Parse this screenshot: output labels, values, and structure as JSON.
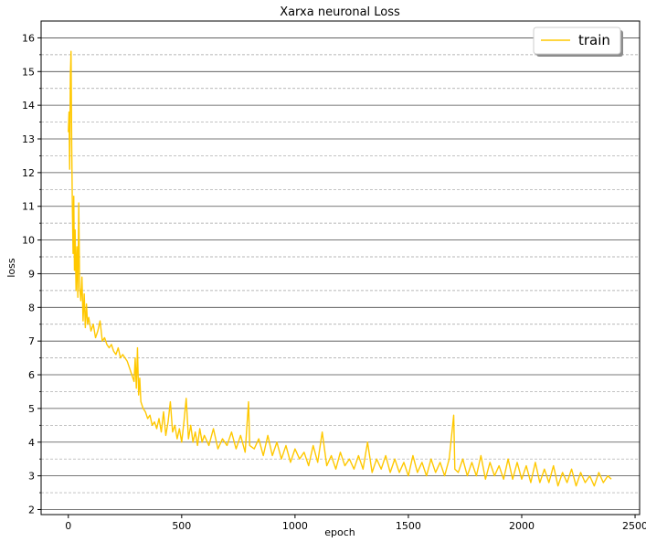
{
  "chart_data": {
    "type": "line",
    "title": "Xarxa neuronal Loss",
    "xlabel": "epoch",
    "ylabel": "loss",
    "xlim": [
      -120,
      2520
    ],
    "ylim": [
      1.85,
      16.5
    ],
    "xticks": [
      0,
      500,
      1000,
      1500,
      2000,
      2500
    ],
    "yticks": [
      2,
      3,
      4,
      5,
      6,
      7,
      8,
      9,
      10,
      11,
      12,
      13,
      14,
      15,
      16
    ],
    "grid": "major solid, minor dashed (y axis)",
    "legend": {
      "position": "top-right",
      "entries": [
        "train"
      ]
    },
    "series": [
      {
        "name": "train",
        "color": "#ffc800",
        "points": [
          [
            0,
            13.2
          ],
          [
            3,
            13.8
          ],
          [
            6,
            12.1
          ],
          [
            9,
            14.9
          ],
          [
            12,
            15.6
          ],
          [
            15,
            12.8
          ],
          [
            18,
            10.9
          ],
          [
            21,
            9.6
          ],
          [
            24,
            11.3
          ],
          [
            27,
            9.1
          ],
          [
            30,
            10.3
          ],
          [
            34,
            8.5
          ],
          [
            38,
            9.8
          ],
          [
            42,
            8.3
          ],
          [
            46,
            11.1
          ],
          [
            50,
            8.6
          ],
          [
            55,
            8.2
          ],
          [
            60,
            8.9
          ],
          [
            65,
            7.6
          ],
          [
            70,
            8.4
          ],
          [
            75,
            7.4
          ],
          [
            80,
            8.1
          ],
          [
            85,
            7.5
          ],
          [
            90,
            7.7
          ],
          [
            100,
            7.3
          ],
          [
            110,
            7.5
          ],
          [
            120,
            7.1
          ],
          [
            130,
            7.3
          ],
          [
            140,
            7.6
          ],
          [
            150,
            7.0
          ],
          [
            160,
            7.1
          ],
          [
            170,
            6.9
          ],
          [
            180,
            6.8
          ],
          [
            190,
            6.9
          ],
          [
            200,
            6.7
          ],
          [
            210,
            6.6
          ],
          [
            220,
            6.8
          ],
          [
            230,
            6.5
          ],
          [
            240,
            6.6
          ],
          [
            250,
            6.5
          ],
          [
            260,
            6.4
          ],
          [
            270,
            6.2
          ],
          [
            280,
            6.0
          ],
          [
            290,
            5.8
          ],
          [
            295,
            6.5
          ],
          [
            300,
            5.6
          ],
          [
            305,
            6.8
          ],
          [
            310,
            5.4
          ],
          [
            315,
            5.9
          ],
          [
            320,
            5.2
          ],
          [
            330,
            5.0
          ],
          [
            340,
            4.9
          ],
          [
            350,
            4.7
          ],
          [
            360,
            4.8
          ],
          [
            370,
            4.5
          ],
          [
            380,
            4.6
          ],
          [
            390,
            4.4
          ],
          [
            400,
            4.7
          ],
          [
            410,
            4.3
          ],
          [
            420,
            4.9
          ],
          [
            430,
            4.2
          ],
          [
            440,
            4.6
          ],
          [
            450,
            5.2
          ],
          [
            460,
            4.3
          ],
          [
            470,
            4.5
          ],
          [
            480,
            4.1
          ],
          [
            490,
            4.4
          ],
          [
            500,
            4.0
          ],
          [
            510,
            4.6
          ],
          [
            520,
            5.3
          ],
          [
            530,
            4.1
          ],
          [
            540,
            4.5
          ],
          [
            550,
            4.0
          ],
          [
            560,
            4.3
          ],
          [
            570,
            3.9
          ],
          [
            580,
            4.4
          ],
          [
            590,
            4.0
          ],
          [
            600,
            4.2
          ],
          [
            620,
            3.9
          ],
          [
            640,
            4.4
          ],
          [
            660,
            3.8
          ],
          [
            680,
            4.1
          ],
          [
            700,
            3.9
          ],
          [
            720,
            4.3
          ],
          [
            740,
            3.8
          ],
          [
            760,
            4.2
          ],
          [
            780,
            3.7
          ],
          [
            795,
            5.2
          ],
          [
            800,
            3.9
          ],
          [
            820,
            3.8
          ],
          [
            840,
            4.1
          ],
          [
            860,
            3.6
          ],
          [
            880,
            4.2
          ],
          [
            900,
            3.6
          ],
          [
            920,
            4.0
          ],
          [
            940,
            3.5
          ],
          [
            960,
            3.9
          ],
          [
            980,
            3.4
          ],
          [
            1000,
            3.8
          ],
          [
            1020,
            3.5
          ],
          [
            1040,
            3.7
          ],
          [
            1060,
            3.3
          ],
          [
            1080,
            3.9
          ],
          [
            1100,
            3.4
          ],
          [
            1120,
            4.3
          ],
          [
            1140,
            3.3
          ],
          [
            1160,
            3.6
          ],
          [
            1180,
            3.2
          ],
          [
            1200,
            3.7
          ],
          [
            1220,
            3.3
          ],
          [
            1240,
            3.5
          ],
          [
            1260,
            3.2
          ],
          [
            1280,
            3.6
          ],
          [
            1300,
            3.2
          ],
          [
            1320,
            4.0
          ],
          [
            1340,
            3.1
          ],
          [
            1360,
            3.5
          ],
          [
            1380,
            3.2
          ],
          [
            1400,
            3.6
          ],
          [
            1420,
            3.1
          ],
          [
            1440,
            3.5
          ],
          [
            1460,
            3.1
          ],
          [
            1480,
            3.4
          ],
          [
            1500,
            3.0
          ],
          [
            1520,
            3.6
          ],
          [
            1540,
            3.1
          ],
          [
            1560,
            3.4
          ],
          [
            1580,
            3.0
          ],
          [
            1600,
            3.5
          ],
          [
            1620,
            3.1
          ],
          [
            1640,
            3.4
          ],
          [
            1660,
            3.0
          ],
          [
            1680,
            3.5
          ],
          [
            1700,
            4.8
          ],
          [
            1705,
            3.2
          ],
          [
            1720,
            3.1
          ],
          [
            1740,
            3.5
          ],
          [
            1760,
            3.0
          ],
          [
            1780,
            3.4
          ],
          [
            1800,
            3.0
          ],
          [
            1820,
            3.6
          ],
          [
            1840,
            2.9
          ],
          [
            1860,
            3.4
          ],
          [
            1880,
            3.0
          ],
          [
            1900,
            3.3
          ],
          [
            1920,
            2.9
          ],
          [
            1940,
            3.5
          ],
          [
            1960,
            2.9
          ],
          [
            1980,
            3.4
          ],
          [
            2000,
            2.9
          ],
          [
            2020,
            3.3
          ],
          [
            2040,
            2.8
          ],
          [
            2060,
            3.4
          ],
          [
            2080,
            2.8
          ],
          [
            2100,
            3.2
          ],
          [
            2120,
            2.8
          ],
          [
            2140,
            3.3
          ],
          [
            2160,
            2.7
          ],
          [
            2180,
            3.1
          ],
          [
            2200,
            2.8
          ],
          [
            2220,
            3.2
          ],
          [
            2240,
            2.7
          ],
          [
            2260,
            3.1
          ],
          [
            2280,
            2.8
          ],
          [
            2300,
            3.0
          ],
          [
            2320,
            2.7
          ],
          [
            2340,
            3.1
          ],
          [
            2360,
            2.8
          ],
          [
            2380,
            3.0
          ],
          [
            2395,
            2.9
          ]
        ]
      }
    ]
  }
}
